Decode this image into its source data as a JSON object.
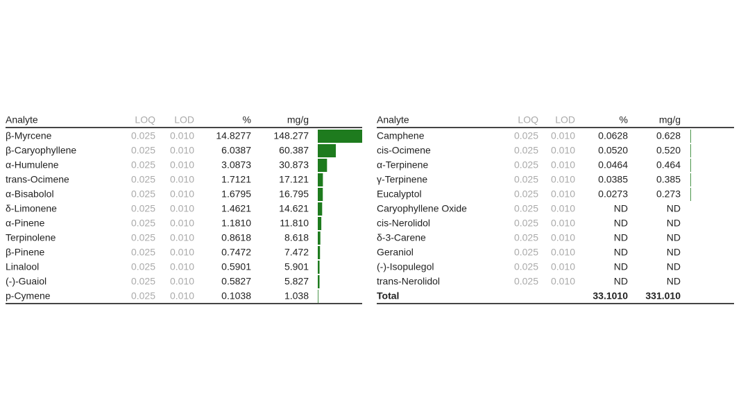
{
  "left_table": {
    "header": [
      "Analyte",
      "LOQ",
      "LOD",
      "%",
      "mg/g"
    ],
    "rows": [
      [
        "β-Myrcene",
        "0.025",
        "0.010",
        "14.8277",
        "148.277"
      ],
      [
        "β-Caryophyllene",
        "0.025",
        "0.010",
        "6.0387",
        "60.387"
      ],
      [
        "α-Humulene",
        "0.025",
        "0.010",
        "3.0873",
        "30.873"
      ],
      [
        "trans-Ocimene",
        "0.025",
        "0.010",
        "1.7121",
        "17.121"
      ],
      [
        "α-Bisabolol",
        "0.025",
        "0.010",
        "1.6795",
        "16.795"
      ],
      [
        "δ-Limonene",
        "0.025",
        "0.010",
        "1.4621",
        "14.621"
      ],
      [
        "α-Pinene",
        "0.025",
        "0.010",
        "1.1810",
        "11.810"
      ],
      [
        "Terpinolene",
        "0.025",
        "0.010",
        "0.8618",
        "8.618"
      ],
      [
        "β-Pinene",
        "0.025",
        "0.010",
        "0.7472",
        "7.472"
      ],
      [
        "Linalool",
        "0.025",
        "0.010",
        "0.5901",
        "5.901"
      ],
      [
        "(-)-Guaiol",
        "0.025",
        "0.010",
        "0.5827",
        "5.827"
      ],
      [
        "p-Cymene",
        "0.025",
        "0.010",
        "0.1038",
        "1.038"
      ]
    ]
  },
  "right_table": {
    "header": [
      "Analyte",
      "LOQ",
      "LOD",
      "%",
      "mg/g"
    ],
    "rows": [
      [
        "Camphene",
        "0.025",
        "0.010",
        "0.0628",
        "0.628"
      ],
      [
        "cis-Ocimene",
        "0.025",
        "0.010",
        "0.0520",
        "0.520"
      ],
      [
        "α-Terpinene",
        "0.025",
        "0.010",
        "0.0464",
        "0.464"
      ],
      [
        "γ-Terpinene",
        "0.025",
        "0.010",
        "0.0385",
        "0.385"
      ],
      [
        "Eucalyptol",
        "0.025",
        "0.010",
        "0.0273",
        "0.273"
      ],
      [
        "Caryophyllene Oxide",
        "0.025",
        "0.010",
        "ND",
        "ND"
      ],
      [
        "cis-Nerolidol",
        "0.025",
        "0.010",
        "ND",
        "ND"
      ],
      [
        "δ-3-Carene",
        "0.025",
        "0.010",
        "ND",
        "ND"
      ],
      [
        "Geraniol",
        "0.025",
        "0.010",
        "ND",
        "ND"
      ],
      [
        "(-)-Isopulegol",
        "0.025",
        "0.010",
        "ND",
        "ND"
      ],
      [
        "trans-Nerolidol",
        "0.025",
        "0.010",
        "ND",
        "ND"
      ]
    ],
    "total": {
      "label": "Total",
      "percent": "33.1010",
      "mg_g": "331.010"
    }
  }
}
